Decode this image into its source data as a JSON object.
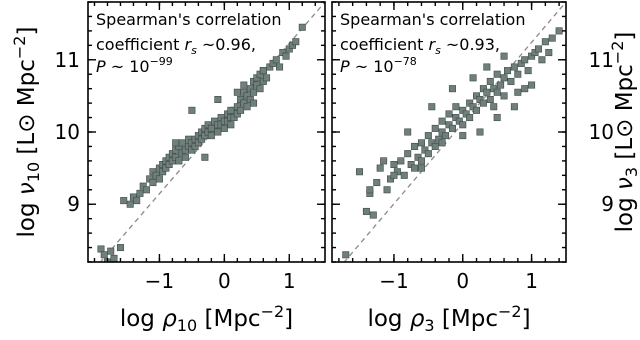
{
  "chart_data": [
    {
      "type": "scatter",
      "xlabel": "log ρ10 [Mpc⁻²]",
      "ylabel": "log ν10 [L⊙ Mpc⁻²]",
      "xlim": [
        -2.1,
        1.55
      ],
      "ylim": [
        8.2,
        11.8
      ],
      "xticks": [
        -1,
        0,
        1
      ],
      "yticks": [
        9,
        10,
        11
      ],
      "xtick_labels": [
        "−1",
        "0",
        "1"
      ],
      "ytick_labels": [
        "9",
        "10",
        "11"
      ],
      "annotation_line1": "Spearman's correlation",
      "annotation_line2": "coefficient r_s ~0.96,",
      "annotation_line3": "P ~ 10^-99",
      "reference_line": {
        "style": "dashed",
        "points": [
          [
            -2.1,
            8.0
          ],
          [
            1.55,
            11.8
          ]
        ]
      },
      "marker_color": "#6f7f7b",
      "x": [
        -1.9,
        -1.85,
        -1.8,
        -1.75,
        -1.7,
        -1.6,
        -1.55,
        -1.45,
        -1.4,
        -1.35,
        -1.3,
        -1.25,
        -1.2,
        -1.15,
        -1.1,
        -1.1,
        -1.05,
        -1.0,
        -1.0,
        -0.95,
        -0.95,
        -0.9,
        -0.9,
        -0.85,
        -0.85,
        -0.8,
        -0.8,
        -0.75,
        -0.75,
        -0.7,
        -0.7,
        -0.65,
        -0.65,
        -0.6,
        -0.6,
        -0.55,
        -0.55,
        -0.5,
        -0.5,
        -0.45,
        -0.45,
        -0.4,
        -0.4,
        -0.35,
        -0.35,
        -0.3,
        -0.3,
        -0.25,
        -0.25,
        -0.2,
        -0.2,
        -0.15,
        -0.15,
        -0.1,
        -0.1,
        -0.05,
        -0.05,
        0.0,
        0.0,
        0.05,
        0.05,
        0.1,
        0.1,
        0.15,
        0.15,
        0.2,
        0.2,
        0.25,
        0.25,
        0.3,
        0.3,
        0.35,
        0.35,
        0.4,
        0.4,
        0.45,
        0.45,
        0.5,
        0.5,
        0.55,
        0.55,
        0.6,
        0.6,
        0.65,
        0.7,
        0.75,
        0.8,
        0.85,
        0.9,
        0.95,
        1.0,
        1.05,
        1.1,
        1.2,
        -0.5,
        -0.3,
        0.1,
        0.3,
        -0.1,
        0.2,
        0.45,
        0.6,
        -0.75,
        -0.2
      ],
      "y": [
        8.38,
        8.3,
        8.2,
        8.35,
        8.25,
        8.4,
        9.05,
        9.0,
        9.1,
        9.05,
        9.15,
        9.25,
        9.2,
        9.35,
        9.3,
        9.45,
        9.4,
        9.5,
        9.35,
        9.55,
        9.45,
        9.6,
        9.5,
        9.65,
        9.55,
        9.7,
        9.6,
        9.75,
        9.65,
        9.6,
        9.8,
        9.7,
        9.85,
        9.75,
        9.65,
        9.8,
        9.9,
        9.85,
        9.75,
        9.9,
        9.8,
        9.95,
        9.85,
        10.0,
        9.9,
        10.05,
        9.95,
        10.1,
        10.0,
        10.05,
        9.95,
        10.15,
        10.05,
        10.1,
        10.0,
        10.2,
        10.1,
        10.15,
        10.05,
        10.25,
        10.15,
        10.2,
        10.1,
        10.3,
        10.2,
        10.35,
        10.25,
        10.3,
        10.45,
        10.4,
        10.55,
        10.5,
        10.35,
        10.6,
        10.45,
        10.7,
        10.55,
        10.65,
        10.75,
        10.6,
        10.8,
        10.7,
        10.85,
        10.75,
        10.9,
        10.95,
        11.0,
        10.9,
        11.1,
        11.05,
        11.15,
        11.2,
        11.25,
        11.45,
        10.3,
        9.65,
        10.3,
        10.65,
        10.45,
        10.55,
        10.4,
        10.85,
        9.85,
        10.05
      ]
    },
    {
      "type": "scatter",
      "xlabel": "log ρ3 [Mpc⁻²]",
      "ylabel": "log ν3 [L⊙ Mpc⁻²]",
      "xlim": [
        -1.9,
        1.5
      ],
      "ylim": [
        8.2,
        11.8
      ],
      "xticks": [
        -1,
        0,
        1
      ],
      "yticks": [
        9,
        10,
        11
      ],
      "xtick_labels": [
        "−1",
        "0",
        "1"
      ],
      "ytick_labels": [
        "9",
        "10",
        "11"
      ],
      "annotation_line1": "Spearman's correlation",
      "annotation_line2": "coefficient r_s ~0.93,",
      "annotation_line3": "P ~ 10^-78",
      "reference_line": {
        "style": "dashed",
        "points": [
          [
            -1.9,
            8.0
          ],
          [
            1.5,
            11.8
          ]
        ]
      },
      "marker_color": "#6f7f7b",
      "x": [
        -1.7,
        -1.5,
        -1.4,
        -1.35,
        -1.3,
        -1.25,
        -1.2,
        -1.1,
        -1.05,
        -1.0,
        -0.95,
        -0.9,
        -0.85,
        -0.8,
        -0.75,
        -0.7,
        -0.7,
        -0.65,
        -0.6,
        -0.6,
        -0.55,
        -0.5,
        -0.5,
        -0.45,
        -0.4,
        -0.4,
        -0.35,
        -0.3,
        -0.3,
        -0.25,
        -0.2,
        -0.2,
        -0.15,
        -0.1,
        -0.1,
        -0.05,
        0.0,
        0.0,
        0.05,
        0.1,
        0.1,
        0.15,
        0.2,
        0.2,
        0.25,
        0.3,
        0.3,
        0.35,
        0.4,
        0.4,
        0.45,
        0.5,
        0.5,
        0.55,
        0.6,
        0.6,
        0.65,
        0.7,
        0.75,
        0.8,
        0.85,
        0.9,
        0.95,
        1.0,
        1.05,
        1.1,
        1.15,
        1.2,
        1.3,
        1.4,
        -1.35,
        -1.0,
        -0.6,
        -0.3,
        0.0,
        0.25,
        0.5,
        0.75,
        -0.8,
        -0.15,
        0.35,
        0.9,
        1.25,
        -0.45,
        0.15,
        0.6,
        1.0,
        -1.15,
        0.45,
        0.8
      ],
      "y": [
        8.3,
        9.45,
        8.9,
        9.15,
        8.85,
        9.3,
        9.5,
        9.2,
        9.35,
        9.55,
        9.45,
        9.6,
        9.4,
        9.7,
        9.55,
        9.5,
        9.8,
        9.65,
        9.85,
        9.6,
        9.75,
        9.7,
        9.95,
        9.85,
        9.8,
        10.05,
        9.9,
        10.0,
        10.15,
        9.95,
        10.1,
        10.25,
        10.05,
        10.2,
        10.35,
        10.15,
        10.3,
        10.1,
        10.25,
        10.4,
        10.2,
        10.35,
        10.5,
        10.3,
        10.45,
        10.4,
        10.6,
        10.55,
        10.45,
        10.7,
        10.6,
        10.55,
        10.8,
        10.65,
        10.75,
        10.5,
        10.85,
        10.7,
        10.9,
        10.8,
        10.95,
        11.0,
        10.85,
        11.05,
        11.1,
        11.15,
        11.0,
        11.25,
        11.3,
        11.4,
        9.2,
        9.4,
        9.5,
        9.85,
        9.95,
        10.0,
        10.2,
        10.35,
        10.0,
        10.6,
        10.9,
        10.6,
        11.1,
        10.35,
        10.75,
        11.05,
        10.65,
        9.6,
        10.35,
        10.55
      ]
    }
  ],
  "right_clipped_axis": {
    "ylabel": "log ν3 [L⊙ Mpc⁻²]",
    "ytick_labels": [
      "9",
      "10",
      "11"
    ]
  }
}
